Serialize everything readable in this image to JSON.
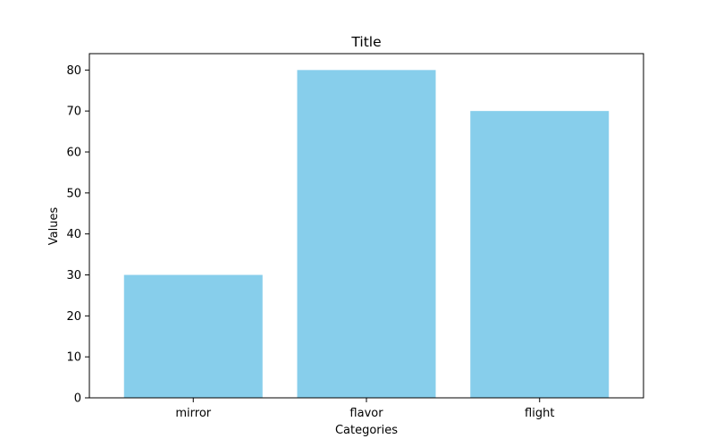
{
  "chart_data": {
    "type": "bar",
    "title": "Title",
    "xlabel": "Categories",
    "ylabel": "Values",
    "categories": [
      "mirror",
      "flavor",
      "flight"
    ],
    "values": [
      30,
      80,
      70
    ],
    "ylim": [
      0,
      84
    ],
    "yticks": [
      0,
      10,
      20,
      30,
      40,
      50,
      60,
      70,
      80
    ],
    "grid": false,
    "legend": "none",
    "bar_color": "#87CEEB",
    "axis_color": "#000000",
    "background_color": "#ffffff"
  }
}
